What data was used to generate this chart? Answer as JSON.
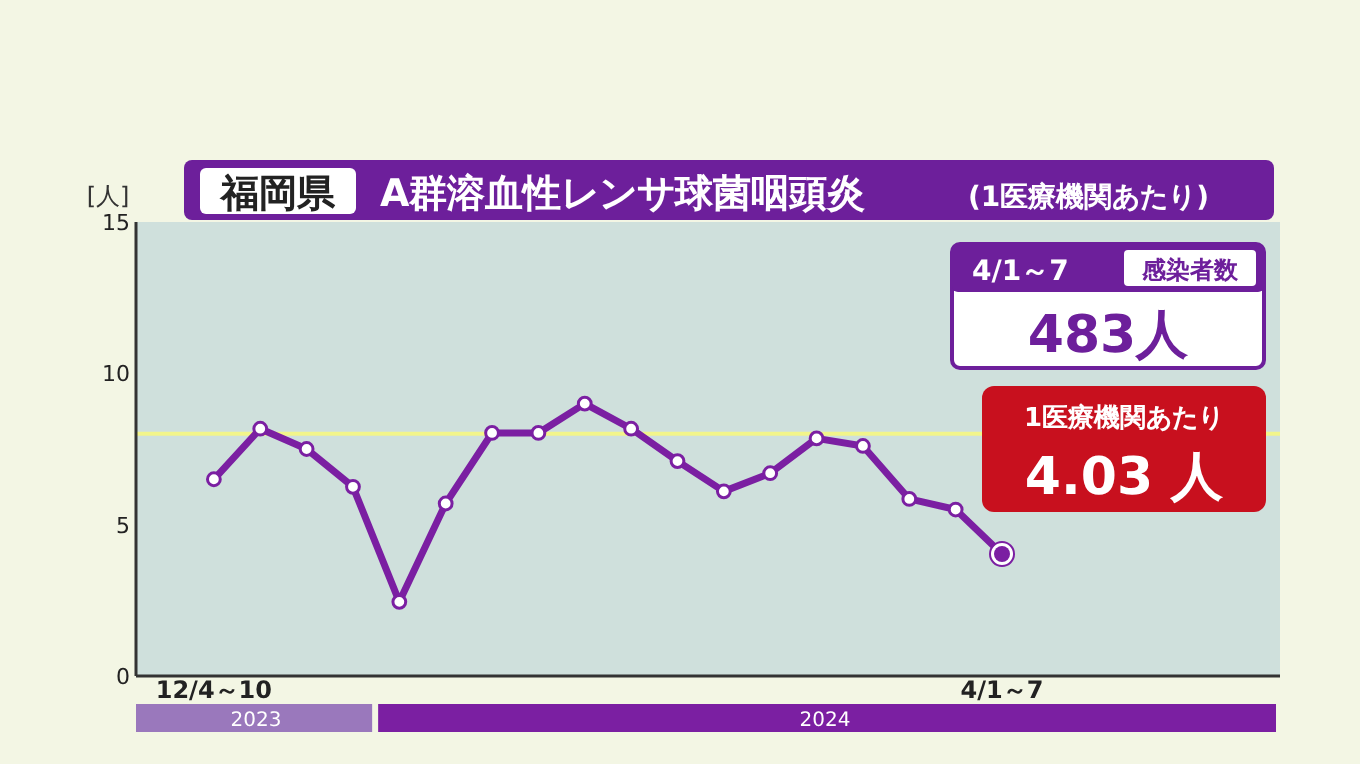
{
  "chart_data": {
    "type": "line",
    "title": "A群溶血性レンサ球菌咽頭炎",
    "subtitle": "(1医療機関あたり)",
    "ylabel": "[人]",
    "categories": [
      "12/4～10",
      null,
      null,
      null,
      null,
      null,
      null,
      null,
      null,
      null,
      null,
      null,
      null,
      null,
      null,
      null,
      null,
      "4/1～7"
    ],
    "series": [
      {
        "color": "#7b1fa2",
        "values": [
          6.5,
          8.17,
          7.5,
          6.25,
          2.45,
          5.7,
          8.03,
          8.03,
          9.0,
          8.17,
          7.1,
          6.1,
          6.7,
          7.85,
          7.6,
          5.85,
          5.5,
          4.03
        ]
      }
    ],
    "ylim": [
      0,
      15
    ],
    "yticks": [
      0,
      5,
      10,
      15
    ],
    "ref_lines": [
      {
        "axis": "y",
        "value": 8,
        "color": "#f2f58a"
      }
    ],
    "marker": "circle",
    "line_style": "solid",
    "annotations": [
      "福岡県",
      "2023",
      "2024",
      "4/1～7",
      "感染者数",
      "483人",
      "1医療機関あたり",
      "4.03 人"
    ]
  }
}
